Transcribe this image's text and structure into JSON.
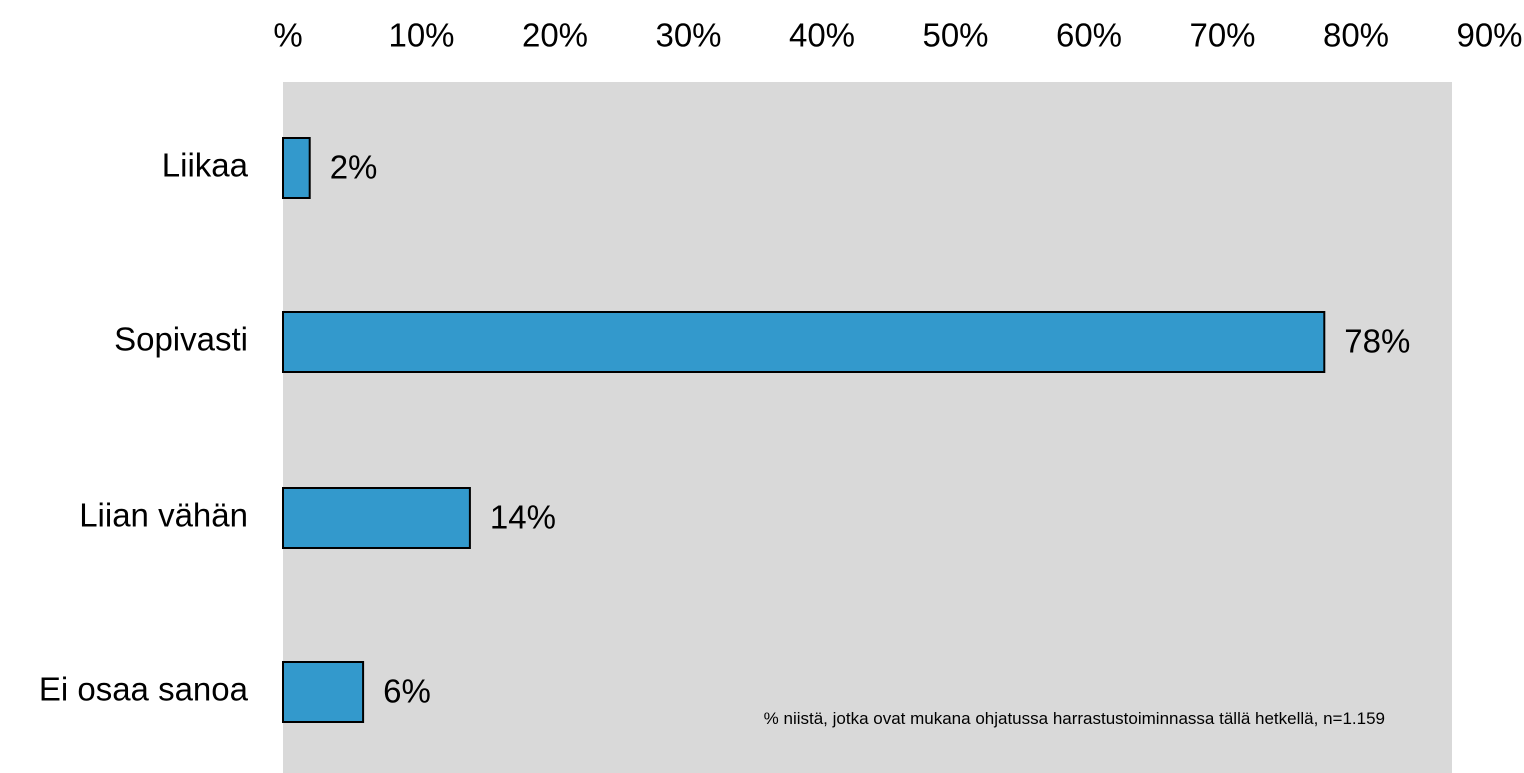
{
  "chart_data": {
    "type": "bar",
    "orientation": "horizontal",
    "categories": [
      "Liikaa",
      "Sopivasti",
      "Liian vähän",
      "Ei osaa sanoa"
    ],
    "values": [
      2,
      78,
      14,
      6
    ],
    "value_labels": [
      "2%",
      "78%",
      "14%",
      "6%"
    ],
    "x_tick_labels": [
      "%",
      "10%",
      "20%",
      "30%",
      "40%",
      "50%",
      "60%",
      "70%",
      "80%",
      "90%"
    ],
    "xlim": [
      0,
      90
    ],
    "x_axis_position": "top",
    "grid": false,
    "legend": false,
    "annotation": "% niistä, jotka ovat mukana ohjatussa harrastustoiminnassa tällä hetkellä, n=1.159",
    "colors": {
      "bar": "#3399cc",
      "bar_outline": "#000000",
      "plot_background": "#d9d9d9",
      "text": "#000000"
    }
  }
}
